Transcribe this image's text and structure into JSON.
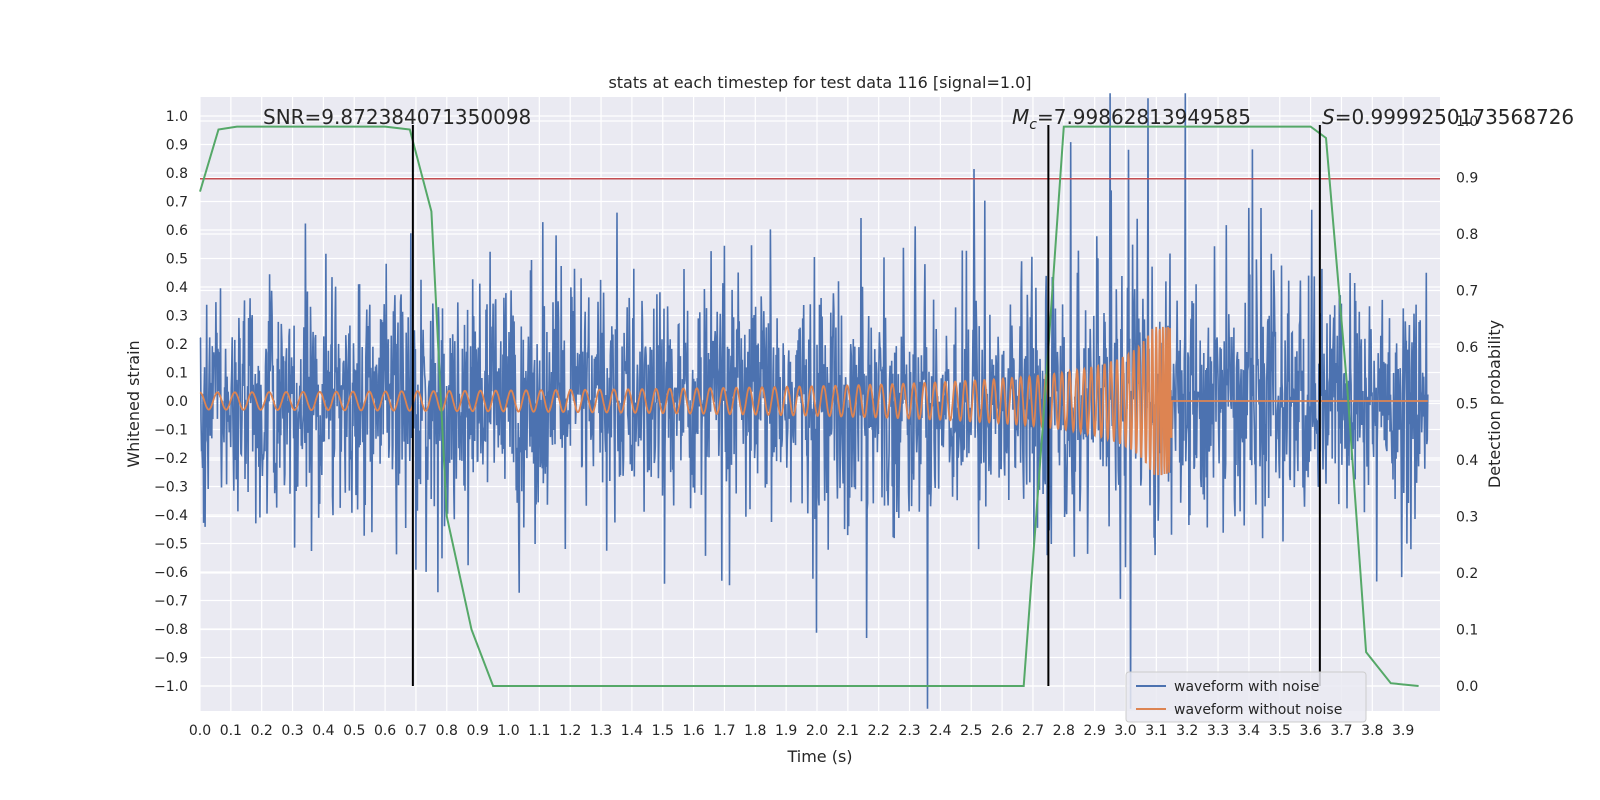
{
  "chart_data": {
    "type": "line",
    "title": "stats at each timestep for test data 116 [signal=1.0]",
    "xlabel": "Time (s)",
    "ylabel": "Whitened strain",
    "ylabel_right": "Detection probability",
    "xlim": [
      0.0,
      4.0
    ],
    "ylim": [
      -1.1,
      1.1
    ],
    "ylim_right": [
      0.0,
      1.0
    ],
    "x_ticks": [
      "0.0",
      "0.1",
      "0.2",
      "0.3",
      "0.4",
      "0.5",
      "0.6",
      "0.7",
      "0.8",
      "0.9",
      "1.0",
      "1.1",
      "1.2",
      "1.3",
      "1.4",
      "1.5",
      "1.6",
      "1.7",
      "1.8",
      "1.9",
      "2.0",
      "2.1",
      "2.2",
      "2.3",
      "2.4",
      "2.5",
      "2.6",
      "2.7",
      "2.8",
      "2.9",
      "3.0",
      "3.1",
      "3.2",
      "3.3",
      "3.4",
      "3.5",
      "3.6",
      "3.7",
      "3.8",
      "3.9"
    ],
    "y_ticks": [
      "1.0",
      "0.9",
      "0.8",
      "0.7",
      "0.6",
      "0.5",
      "0.4",
      "0.3",
      "0.2",
      "0.1",
      "0.0",
      "−0.1",
      "−0.2",
      "−0.3",
      "−0.4",
      "−0.5",
      "−0.6",
      "−0.7",
      "−0.8",
      "−0.9",
      "−1.0"
    ],
    "y_ticks_right": [
      "1.0",
      "0.9",
      "0.8",
      "0.7",
      "0.6",
      "0.5",
      "0.4",
      "0.3",
      "0.2",
      "0.1",
      "0.0"
    ],
    "grid": true,
    "legend_position": "lower-right",
    "series": [
      {
        "name": "waveform with noise",
        "color": "#4c72b0",
        "axis": "left",
        "amplitude_envelope": 0.55
      },
      {
        "name": "waveform without noise",
        "color": "#dd8452",
        "axis": "left",
        "chirp_start_amplitude": 0.03,
        "chirp_peak_amplitude": 0.26,
        "merger_time": 3.15
      },
      {
        "color": "#55a868",
        "axis": "right",
        "x": [
          0.0,
          0.06,
          0.12,
          0.2,
          0.4,
          0.6,
          0.68,
          0.75,
          0.8,
          0.88,
          0.95,
          2.67,
          2.74,
          2.8,
          2.87,
          3.6,
          3.65,
          3.72,
          3.78,
          3.86,
          3.95
        ],
        "y": [
          0.875,
          0.985,
          0.99,
          0.99,
          0.99,
          0.99,
          0.985,
          0.84,
          0.3,
          0.1,
          0.0,
          0.0,
          0.52,
          0.99,
          0.99,
          0.99,
          0.97,
          0.52,
          0.06,
          0.005,
          0.0
        ]
      },
      {
        "color": "#c44e52",
        "axis": "left",
        "constant": 0.78
      }
    ],
    "vertical_lines": [
      0.69,
      2.75,
      3.63
    ],
    "annotations": [
      {
        "text": "SNR=9.872384071350098",
        "x": 0.2
      },
      {
        "text": "M_c=7.99862813949585",
        "x": 2.61
      },
      {
        "text": "S=0.9999250173568726",
        "x": 3.62
      }
    ]
  }
}
